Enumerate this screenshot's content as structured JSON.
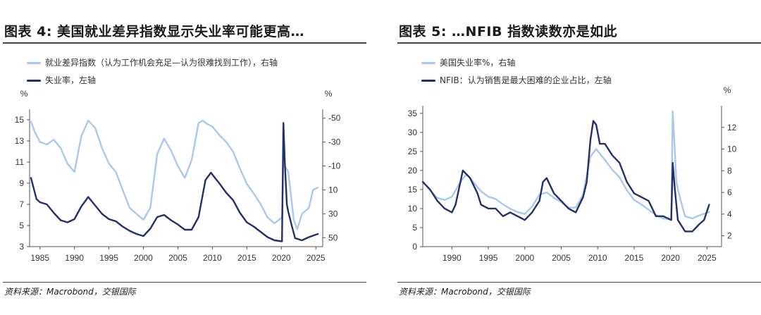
{
  "left": {
    "title": "图表 4: 美国就业差异指数显示失业率可能更高…",
    "legend_light": "就业差异指数（认为工作机会充足—认为很难找到工作），右轴",
    "legend_dark": "失业率，左轴",
    "source": "资料来源：Macrobond，交银国际"
  },
  "right": {
    "title": "图表 5: …NFIB 指数读数亦是如此",
    "legend_light": "美国失业率%，右轴",
    "legend_dark": "NFIB：认为销售是最大困难的企业占比，左轴",
    "source": "资料来源：Macrobond，交银国际"
  },
  "colors": {
    "light": "#a9c8ee",
    "dark": "#243067"
  },
  "chart_data": [
    {
      "type": "line",
      "title": "图表 4: 美国就业差异指数显示失业率可能更高…",
      "xlim": [
        1983.5,
        2026
      ],
      "x_ticks": [
        1985,
        1990,
        1995,
        2000,
        2005,
        2010,
        2015,
        2020,
        2025
      ],
      "left_axis": {
        "unit": "%",
        "ylim": [
          3,
          16
        ],
        "ticks": [
          3,
          5,
          7,
          9,
          11,
          13,
          15
        ]
      },
      "right_axis": {
        "unit": "%",
        "ylim": [
          -57.5,
          57.5
        ],
        "inverted": true,
        "ticks": [
          -50,
          -30,
          -10,
          10,
          30,
          50
        ]
      },
      "grid": false,
      "series": [
        {
          "name": "就业差异指数（认为工作机会充足—认为很难找到工作），右轴",
          "axis": "right",
          "x": [
            1983.7,
            1984.3,
            1985,
            1986,
            1987,
            1988,
            1989,
            1990,
            1991,
            1992,
            1993,
            1994,
            1995,
            1996,
            1997,
            1998,
            1999,
            2000,
            2001,
            2002,
            2003,
            2004,
            2005,
            2006,
            2007,
            2008,
            2008.6,
            2009.3,
            2010,
            2011,
            2012,
            2013,
            2014,
            2015,
            2016,
            2017,
            2018,
            2019,
            2020.1,
            2020.3,
            2020.5,
            2021,
            2021.8,
            2022.3,
            2023,
            2024,
            2024.6,
            2025.3
          ],
          "y": [
            -47,
            -38,
            -30,
            -28,
            -32,
            -25,
            -12,
            -5,
            -35,
            -48,
            -42,
            -25,
            -12,
            -5,
            10,
            25,
            30,
            35,
            25,
            -20,
            -33,
            -23,
            -10,
            0,
            -15,
            -46,
            -48,
            -45,
            -43,
            -36,
            -30,
            -22,
            -8,
            5,
            13,
            22,
            33,
            38,
            33,
            -15,
            -10,
            -5,
            35,
            43,
            30,
            25,
            10,
            8
          ]
        },
        {
          "name": "失业率，左轴",
          "axis": "left",
          "x": [
            1983.7,
            1984.5,
            1985,
            1986,
            1987,
            1988,
            1989,
            1990,
            1991,
            1992,
            1993,
            1994,
            1995,
            1996,
            1997,
            1998,
            1999,
            2000,
            2001,
            2002,
            2003,
            2004,
            2005,
            2006,
            2007,
            2008,
            2009,
            2009.8,
            2010.5,
            2011,
            2012,
            2013,
            2014,
            2015,
            2016,
            2017,
            2018,
            2019,
            2020.1,
            2020.3,
            2020.5,
            2020.8,
            2021,
            2021.5,
            2022,
            2023,
            2024,
            2025.3
          ],
          "y": [
            9.5,
            7.5,
            7.2,
            7.0,
            6.2,
            5.5,
            5.3,
            5.6,
            6.8,
            7.7,
            6.9,
            6.1,
            5.6,
            5.4,
            4.9,
            4.5,
            4.2,
            4.0,
            4.7,
            5.8,
            6.0,
            5.5,
            5.1,
            4.6,
            4.6,
            5.8,
            9.3,
            10.0,
            9.4,
            9.0,
            8.1,
            7.4,
            6.2,
            5.3,
            4.9,
            4.4,
            3.9,
            3.6,
            3.5,
            14.7,
            11.0,
            7.0,
            6.3,
            5.0,
            3.8,
            3.6,
            3.9,
            4.2
          ]
        }
      ]
    },
    {
      "type": "line",
      "title": "图表 5: …NFIB 指数读数亦是如此",
      "xlim": [
        1986,
        2027
      ],
      "x_ticks": [
        1990,
        1995,
        2000,
        2005,
        2010,
        2015,
        2020,
        2025
      ],
      "left_axis": {
        "unit": "",
        "ylim": [
          0,
          37
        ],
        "ticks": [
          0,
          5,
          10,
          15,
          20,
          25,
          30,
          35
        ]
      },
      "right_axis": {
        "unit": "%",
        "ylim": [
          1,
          14
        ],
        "ticks": [
          2,
          4,
          6,
          8,
          10,
          12
        ]
      },
      "grid": false,
      "series": [
        {
          "name": "美国失业率%，右轴",
          "axis": "right",
          "x": [
            1986,
            1987,
            1988,
            1989,
            1990,
            1991,
            1992,
            1993,
            1994,
            1995,
            1996,
            1997,
            1998,
            1999,
            2000,
            2001,
            2002,
            2003,
            2004,
            2005,
            2006,
            2007,
            2008,
            2009,
            2009.8,
            2010.5,
            2011,
            2012,
            2013,
            2014,
            2015,
            2016,
            2017,
            2018,
            2019,
            2020.1,
            2020.3,
            2020.5,
            2020.8,
            2021,
            2021.5,
            2022,
            2023,
            2024,
            2025.3
          ],
          "y": [
            7.0,
            6.2,
            5.5,
            5.3,
            5.6,
            6.8,
            7.7,
            6.9,
            6.1,
            5.6,
            5.4,
            4.9,
            4.5,
            4.2,
            4.0,
            4.7,
            5.8,
            6.0,
            5.5,
            5.1,
            4.6,
            4.6,
            5.8,
            9.3,
            10.0,
            9.4,
            9.0,
            8.1,
            7.4,
            6.2,
            5.3,
            4.9,
            4.4,
            3.9,
            3.6,
            3.5,
            13.5,
            11.0,
            7.0,
            6.3,
            5.0,
            3.8,
            3.6,
            3.9,
            4.2
          ]
        },
        {
          "name": "NFIB：认为销售是最大困难的企业占比，左轴",
          "axis": "left",
          "x": [
            1986,
            1987,
            1988,
            1989,
            1990,
            1990.5,
            1991.5,
            1992.5,
            1993.5,
            1994,
            1995,
            1996,
            1997,
            1998,
            1999,
            2000,
            2001,
            2002,
            2002.5,
            2003,
            2004,
            2005,
            2006,
            2007,
            2008,
            2008.5,
            2009,
            2009.4,
            2009.8,
            2010.3,
            2011,
            2012,
            2013,
            2014,
            2015,
            2016,
            2017,
            2018,
            2019,
            2020.1,
            2020.3,
            2020.6,
            2021,
            2022,
            2023,
            2023.5,
            2024,
            2024.6,
            2025.3
          ],
          "y": [
            17,
            15,
            12,
            10,
            9,
            11,
            20,
            18,
            14,
            11,
            10,
            10,
            8,
            9,
            8,
            7,
            9,
            12,
            17,
            18,
            14,
            12,
            10,
            9,
            13,
            17,
            28,
            33,
            32,
            27,
            27,
            24,
            22,
            17,
            14,
            13,
            12,
            8,
            8,
            7,
            22,
            15,
            7,
            4,
            4,
            5,
            6,
            7,
            11
          ]
        }
      ]
    }
  ]
}
